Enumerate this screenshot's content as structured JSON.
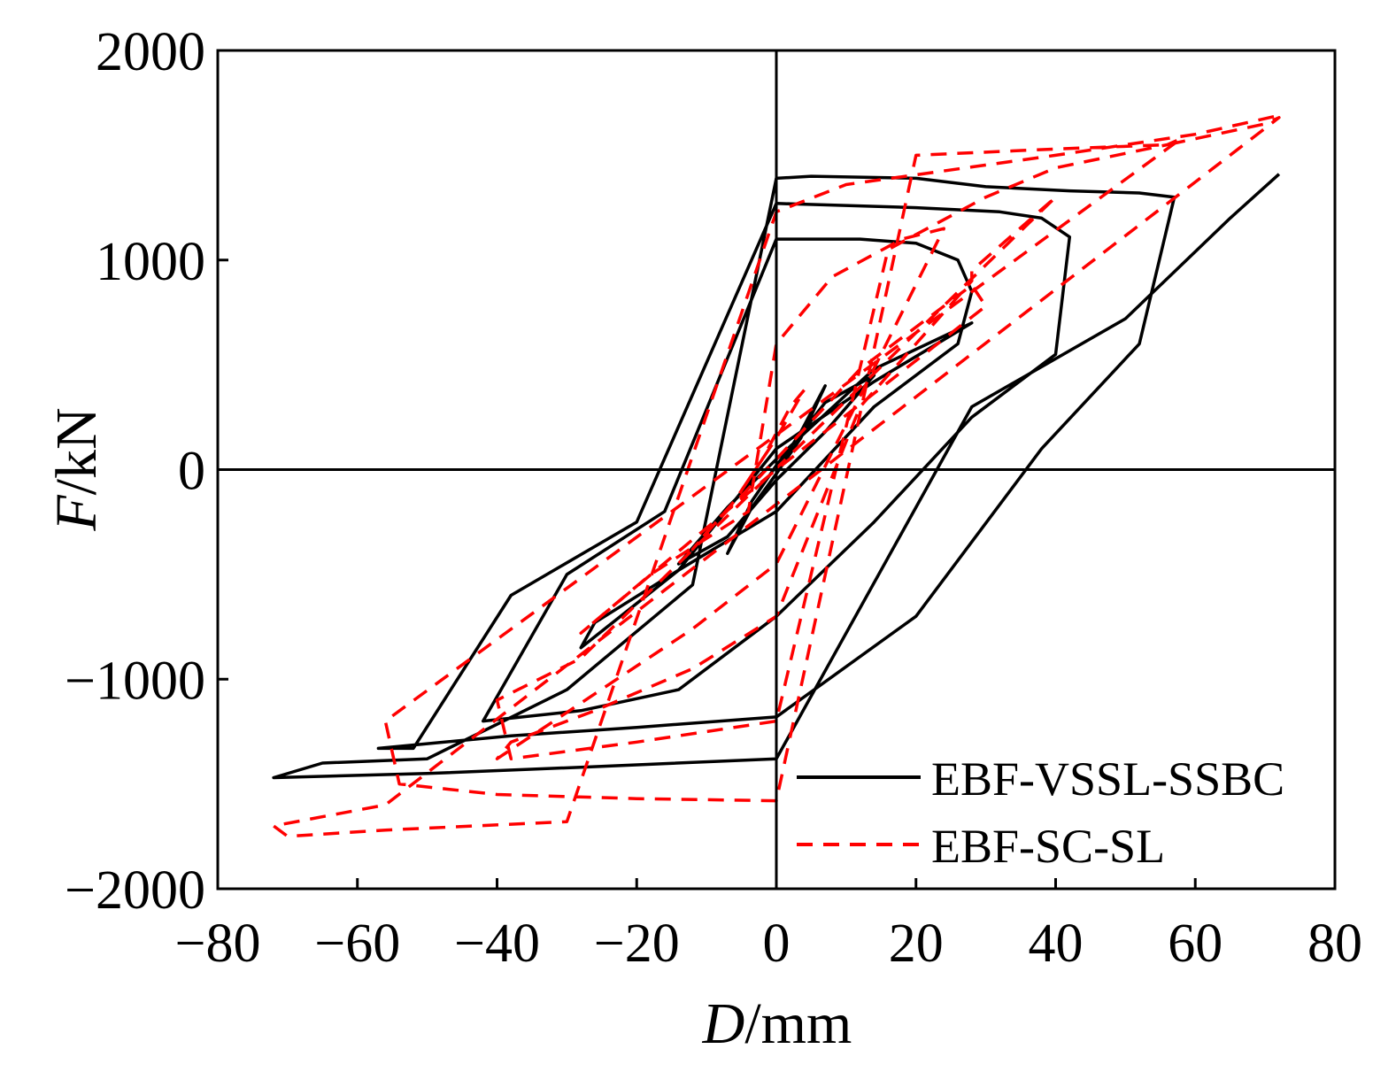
{
  "chart_data": {
    "type": "line",
    "title": "",
    "xlabel": {
      "symbol": "D",
      "unit": "/mm"
    },
    "ylabel": {
      "symbol": "F",
      "unit": "/kN"
    },
    "xlim": [
      -80,
      80
    ],
    "ylim": [
      -2000,
      2000
    ],
    "xticks": [
      -80,
      -60,
      -40,
      -20,
      0,
      20,
      40,
      60,
      80
    ],
    "yticks": [
      -2000,
      -1000,
      0,
      1000,
      2000
    ],
    "xtick_labels": [
      "−80",
      "−60",
      "−40",
      "−20",
      "0",
      "20",
      "40",
      "60",
      "80"
    ],
    "ytick_labels": [
      "−2000",
      "−1000",
      "0",
      "1000",
      "2000"
    ],
    "grid": false,
    "zero_lines": true,
    "legend_position": "bottom-right",
    "colors": {
      "solid": "#000000",
      "dashed": "#ff0000"
    },
    "series": [
      {
        "name": "EBF-VSSL-SSBC",
        "style": "solid",
        "color": "#000000",
        "x": [
          0,
          3.5,
          7,
          3.5,
          0,
          -3.5,
          -7,
          -3.5,
          0,
          7,
          14,
          7,
          0,
          -7,
          -14,
          -7,
          0,
          14,
          28,
          14,
          0,
          -14,
          -28,
          -26,
          -14,
          0,
          14,
          26,
          28,
          26,
          20,
          12,
          0,
          -16,
          -30,
          -42,
          -28,
          -14,
          0,
          14,
          28,
          40,
          42,
          38,
          32,
          20,
          0,
          -20,
          -38,
          -52,
          -57,
          -38,
          -20,
          0,
          20,
          38,
          52,
          57,
          52,
          42,
          30,
          20,
          5,
          0,
          -12,
          -30,
          -50,
          -65,
          -72,
          -50,
          -28,
          0,
          28,
          50,
          65,
          72
        ],
        "y": [
          0,
          180,
          400,
          150,
          -20,
          -180,
          -400,
          -150,
          20,
          320,
          450,
          180,
          -50,
          -320,
          -450,
          -180,
          50,
          480,
          700,
          420,
          100,
          -480,
          -850,
          -730,
          -480,
          -200,
          300,
          600,
          850,
          1000,
          1080,
          1100,
          1100,
          -200,
          -500,
          -1200,
          -1150,
          -1050,
          -700,
          -250,
          250,
          550,
          1110,
          1200,
          1230,
          1250,
          1270,
          -250,
          -600,
          -1330,
          -1330,
          -1270,
          -1230,
          -1180,
          -700,
          100,
          600,
          1300,
          1320,
          1330,
          1350,
          1390,
          1400,
          1390,
          -550,
          -1050,
          -1380,
          -1400,
          -1470,
          -1450,
          -1420,
          -1380,
          300,
          720,
          1200,
          1410
        ]
      },
      {
        "name": "EBF-SC-SL",
        "style": "dashed",
        "color": "#ff0000",
        "x": [
          -4,
          0,
          4,
          2,
          -2,
          -6,
          -12,
          -10,
          0,
          12,
          28,
          30,
          0,
          -28,
          -18,
          -4,
          0,
          8,
          18,
          24,
          0,
          -12,
          -40,
          -38,
          -26,
          -12,
          0,
          12,
          28,
          28,
          40,
          -28,
          -40,
          -38,
          -20,
          0,
          16,
          30,
          40,
          56,
          58,
          -56,
          -54,
          -40,
          -20,
          0,
          20,
          40,
          56,
          70,
          72,
          -56,
          -72,
          -70,
          -56,
          -30,
          0,
          10,
          40,
          60,
          72
        ],
        "y": [
          -50,
          150,
          380,
          300,
          50,
          -150,
          -380,
          -300,
          50,
          480,
          880,
          780,
          0,
          -780,
          -500,
          -200,
          600,
          920,
          1100,
          1150,
          -450,
          -760,
          -1380,
          -1300,
          -1150,
          -950,
          -700,
          300,
          900,
          950,
          1300,
          -900,
          -1100,
          -1380,
          -1300,
          -1200,
          1050,
          1300,
          1440,
          1550,
          1580,
          -1200,
          -1500,
          -1550,
          -1570,
          -1580,
          1500,
          1530,
          1550,
          1650,
          1680,
          -1600,
          -1700,
          -1750,
          -1720,
          -1680,
          1230,
          1360,
          1500,
          1600,
          1690
        ]
      }
    ]
  }
}
